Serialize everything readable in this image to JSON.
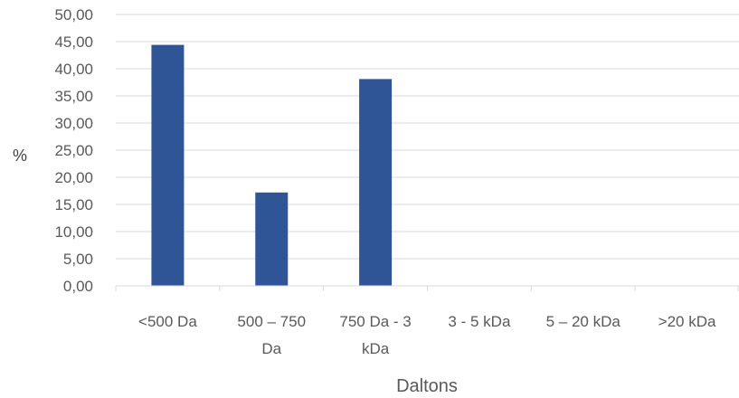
{
  "chart_data": {
    "type": "bar",
    "title": "",
    "xlabel": "Daltons",
    "ylabel": "%",
    "categories": [
      "<500 Da",
      "500 – 750 Da",
      "750 Da - 3 kDa",
      "3 - 5 kDa",
      "5 – 20 kDa",
      ">20 kDa"
    ],
    "category_lines": [
      [
        "<500 Da"
      ],
      [
        "500 – 750",
        "Da"
      ],
      [
        "750 Da - 3",
        "kDa"
      ],
      [
        "3 - 5 kDa"
      ],
      [
        "5 – 20 kDa"
      ],
      [
        ">20 kDa"
      ]
    ],
    "values": [
      44.4,
      17.2,
      38.1,
      0,
      0,
      0
    ],
    "ylim": [
      0,
      50
    ],
    "ytick_step": 5,
    "ytick_labels": [
      "0,00",
      "5,00",
      "10,00",
      "15,00",
      "20,00",
      "25,00",
      "30,00",
      "35,00",
      "40,00",
      "45,00",
      "50,00"
    ],
    "grid": true,
    "legend": "none",
    "bar_color": "#2F5597",
    "grid_color": "#d9d9d9"
  }
}
